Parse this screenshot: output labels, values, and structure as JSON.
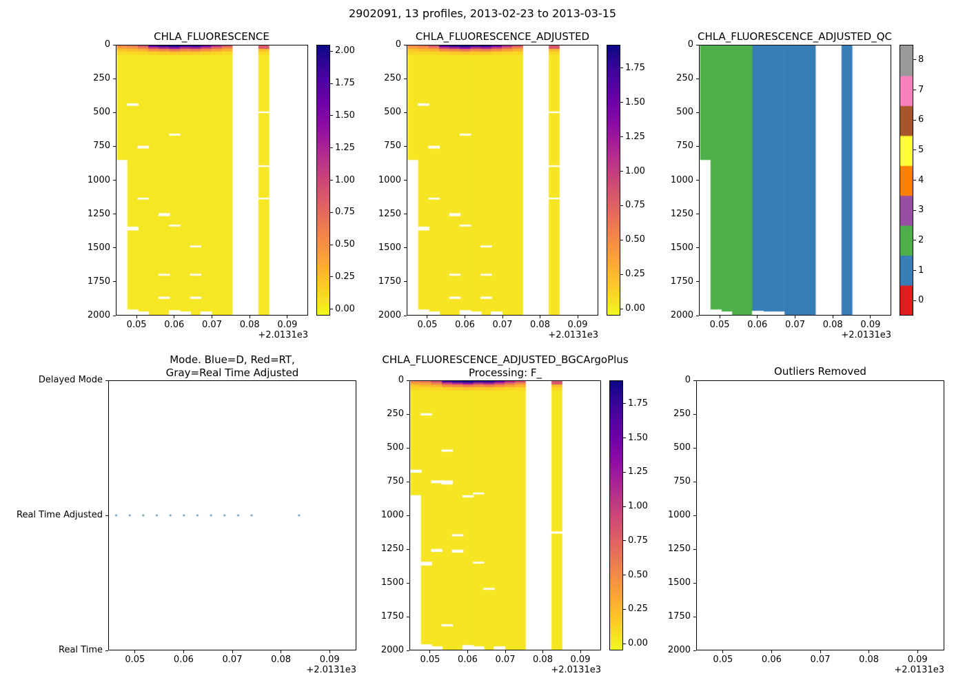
{
  "figure": {
    "suptitle": "2902091, 13 profiles, 2013-02-23 to 2013-03-15"
  },
  "common": {
    "xlim": [
      0.0445,
      0.0955
    ],
    "x_tick_values": [
      0.05,
      0.06,
      0.07,
      0.08,
      0.09
    ],
    "x_tick_labels": [
      "0.05",
      "0.06",
      "0.07",
      "0.08",
      "0.09"
    ],
    "x_offset_text": "+2.0131e3",
    "depth_lim": [
      0,
      2000
    ],
    "depth_tick_values": [
      0,
      250,
      500,
      750,
      1000,
      1250,
      1500,
      1750,
      2000
    ],
    "x_centers": [
      0.046,
      0.0488,
      0.0516,
      0.0544,
      0.0572,
      0.06,
      0.0628,
      0.0656,
      0.0684,
      0.0712,
      0.074,
      0.0838
    ],
    "half_width": 0.0014,
    "bottom_depths": [
      850,
      2000,
      2000,
      2000,
      2000,
      2000,
      2000,
      2000,
      2000,
      2000,
      2000,
      2000
    ],
    "layer_depths": [
      0,
      12,
      25,
      45,
      70
    ]
  },
  "colors": {
    "plasma_anchors": [
      [
        0.0,
        "#0d0887"
      ],
      [
        0.1,
        "#41049d"
      ],
      [
        0.2,
        "#6a00a8"
      ],
      [
        0.3,
        "#8f0da4"
      ],
      [
        0.4,
        "#b12a90"
      ],
      [
        0.5,
        "#cc4778"
      ],
      [
        0.6,
        "#e16462"
      ],
      [
        0.7,
        "#f2844b"
      ],
      [
        0.8,
        "#fca636"
      ],
      [
        0.9,
        "#fcce25"
      ],
      [
        1.0,
        "#f0f921"
      ]
    ],
    "qc_palette": [
      "#e41a1c",
      "#377eb8",
      "#4daf4a",
      "#984ea3",
      "#ff7f00",
      "#ffff33",
      "#a65628",
      "#f781bf",
      "#999999"
    ],
    "mode_dot": "#6d9cb5",
    "axis": "#000000",
    "background": "#ffffff"
  },
  "chart_data": [
    {
      "type": "heatmap",
      "title": "CHLA_FLUORESCENCE",
      "base_value": 0.04,
      "surface_values": [
        [
          0.55,
          0.4,
          0.2,
          0.1
        ],
        [
          0.65,
          0.45,
          0.25,
          0.1
        ],
        [
          0.9,
          0.6,
          0.3,
          0.12
        ],
        [
          1.7,
          1.0,
          0.5,
          0.15
        ],
        [
          1.9,
          1.2,
          0.55,
          0.18
        ],
        [
          2.0,
          1.4,
          0.65,
          0.2
        ],
        [
          1.85,
          1.1,
          0.55,
          0.18
        ],
        [
          1.9,
          1.25,
          0.6,
          0.18
        ],
        [
          1.6,
          1.0,
          0.5,
          0.15
        ],
        [
          1.2,
          0.75,
          0.4,
          0.12
        ],
        [
          0.9,
          0.55,
          0.3,
          0.1
        ],
        [
          0.85,
          0.9,
          0.25,
          0.1
        ]
      ],
      "gaps": [
        [
          1,
          430,
          18
        ],
        [
          5,
          655,
          14
        ],
        [
          2,
          745,
          20
        ],
        [
          2,
          1130,
          14
        ],
        [
          4,
          1245,
          22
        ],
        [
          5,
          1330,
          14
        ],
        [
          1,
          1345,
          28
        ],
        [
          7,
          1485,
          14
        ],
        [
          4,
          1695,
          14
        ],
        [
          7,
          1695,
          14
        ],
        [
          4,
          1865,
          16
        ],
        [
          7,
          1865,
          16
        ],
        [
          11,
          490,
          12
        ],
        [
          11,
          890,
          12
        ],
        [
          11,
          1130,
          12
        ],
        [
          1,
          1960,
          40
        ],
        [
          2,
          1975,
          25
        ],
        [
          5,
          1965,
          35
        ],
        [
          6,
          1975,
          25
        ],
        [
          8,
          1975,
          25
        ]
      ],
      "colorbar": {
        "vmin": -0.05,
        "vmax": 2.05,
        "tick_values": [
          0,
          0.25,
          0.5,
          0.75,
          1.0,
          1.25,
          1.5,
          1.75,
          2.0
        ],
        "tick_labels": [
          "0.00",
          "0.25",
          "0.50",
          "0.75",
          "1.00",
          "1.25",
          "1.50",
          "1.75",
          "2.00"
        ]
      }
    },
    {
      "type": "heatmap",
      "title": "CHLA_FLUORESCENCE_ADJUSTED",
      "base_value": 0.04,
      "surface_values": [
        [
          0.52,
          0.38,
          0.19,
          0.1
        ],
        [
          0.62,
          0.43,
          0.24,
          0.1
        ],
        [
          0.86,
          0.57,
          0.29,
          0.11
        ],
        [
          1.62,
          0.95,
          0.48,
          0.14
        ],
        [
          1.81,
          1.14,
          0.52,
          0.17
        ],
        [
          1.9,
          1.33,
          0.62,
          0.19
        ],
        [
          1.76,
          1.05,
          0.52,
          0.17
        ],
        [
          1.81,
          1.19,
          0.57,
          0.17
        ],
        [
          1.52,
          0.95,
          0.48,
          0.14
        ],
        [
          1.14,
          0.71,
          0.38,
          0.11
        ],
        [
          0.86,
          0.52,
          0.29,
          0.1
        ],
        [
          0.81,
          0.86,
          0.24,
          0.1
        ]
      ],
      "gaps": [
        [
          1,
          430,
          18
        ],
        [
          5,
          655,
          14
        ],
        [
          2,
          745,
          20
        ],
        [
          2,
          1130,
          14
        ],
        [
          4,
          1245,
          22
        ],
        [
          5,
          1330,
          14
        ],
        [
          1,
          1345,
          28
        ],
        [
          7,
          1485,
          14
        ],
        [
          4,
          1695,
          14
        ],
        [
          7,
          1695,
          14
        ],
        [
          4,
          1865,
          16
        ],
        [
          7,
          1865,
          16
        ],
        [
          11,
          490,
          12
        ],
        [
          11,
          890,
          12
        ],
        [
          11,
          1130,
          12
        ],
        [
          1,
          1960,
          40
        ],
        [
          2,
          1975,
          25
        ],
        [
          5,
          1965,
          35
        ],
        [
          6,
          1975,
          25
        ],
        [
          8,
          1975,
          25
        ]
      ],
      "colorbar": {
        "vmin": -0.05,
        "vmax": 1.92,
        "tick_values": [
          0,
          0.25,
          0.5,
          0.75,
          1.0,
          1.25,
          1.5,
          1.75
        ],
        "tick_labels": [
          "0.00",
          "0.25",
          "0.50",
          "0.75",
          "1.00",
          "1.25",
          "1.50",
          "1.75"
        ]
      }
    },
    {
      "type": "heatmap_qc",
      "title": "CHLA_FLUORESCENCE_ADJUSTED_QC",
      "flags": [
        2,
        2,
        2,
        2,
        2,
        1,
        1,
        1,
        1,
        1,
        1,
        1
      ],
      "gaps": [
        [
          1,
          1960,
          40
        ],
        [
          2,
          1975,
          25
        ],
        [
          5,
          1970,
          30
        ],
        [
          6,
          1975,
          25
        ],
        [
          7,
          1975,
          25
        ]
      ],
      "colorbar": {
        "vmin": 0,
        "vmax": 8,
        "discrete": true,
        "tick_values": [
          0,
          1,
          2,
          3,
          4,
          5,
          6,
          7,
          8
        ],
        "tick_labels": [
          "0",
          "1",
          "2",
          "3",
          "4",
          "5",
          "6",
          "7",
          "8"
        ]
      }
    },
    {
      "type": "scatter",
      "title_lines": [
        "Mode. Blue=D, Red=RT,",
        "Gray=Real Time Adjusted"
      ],
      "y_categories": [
        "Real Time",
        "Real Time Adjusted",
        "Delayed Mode"
      ],
      "points_x": [
        0.046,
        0.0488,
        0.0516,
        0.0544,
        0.0572,
        0.06,
        0.0628,
        0.0656,
        0.0684,
        0.0712,
        0.074,
        0.0838
      ],
      "points_category": "Real Time Adjusted",
      "dot_radius": 1.6
    },
    {
      "type": "heatmap",
      "title_lines": [
        "CHLA_FLUORESCENCE_ADJUSTED_BGCArgoPlus",
        "Processing: F_"
      ],
      "base_value": 0.04,
      "surface_values": [
        [
          0.52,
          0.38,
          0.19,
          0.1
        ],
        [
          0.62,
          0.43,
          0.24,
          0.1
        ],
        [
          0.86,
          0.57,
          0.29,
          0.11
        ],
        [
          1.62,
          0.95,
          0.48,
          0.14
        ],
        [
          1.81,
          1.14,
          0.52,
          0.17
        ],
        [
          1.9,
          1.33,
          0.62,
          0.19
        ],
        [
          1.76,
          1.05,
          0.52,
          0.17
        ],
        [
          1.81,
          1.19,
          0.57,
          0.17
        ],
        [
          1.52,
          0.95,
          0.48,
          0.14
        ],
        [
          1.14,
          0.71,
          0.38,
          0.11
        ],
        [
          0.86,
          0.52,
          0.29,
          0.1
        ],
        [
          0.81,
          0.86,
          0.24,
          0.1
        ]
      ],
      "gaps": [
        [
          1,
          240,
          16
        ],
        [
          3,
          510,
          16
        ],
        [
          0,
          660,
          22
        ],
        [
          3,
          740,
          30
        ],
        [
          2,
          740,
          20
        ],
        [
          5,
          850,
          16
        ],
        [
          6,
          830,
          14
        ],
        [
          4,
          1140,
          16
        ],
        [
          2,
          1250,
          22
        ],
        [
          4,
          1255,
          22
        ],
        [
          1,
          1345,
          28
        ],
        [
          6,
          1345,
          14
        ],
        [
          7,
          1540,
          14
        ],
        [
          3,
          1810,
          16
        ],
        [
          11,
          1120,
          16
        ],
        [
          1,
          1960,
          40
        ],
        [
          2,
          1975,
          25
        ],
        [
          5,
          1965,
          35
        ],
        [
          6,
          1975,
          25
        ],
        [
          8,
          1975,
          25
        ]
      ],
      "colorbar": {
        "vmin": -0.05,
        "vmax": 1.92,
        "tick_values": [
          0,
          0.25,
          0.5,
          0.75,
          1.0,
          1.25,
          1.5,
          1.75
        ],
        "tick_labels": [
          "0.00",
          "0.25",
          "0.50",
          "0.75",
          "1.00",
          "1.25",
          "1.50",
          "1.75"
        ]
      }
    },
    {
      "type": "empty",
      "title": "Outliers Removed"
    }
  ]
}
